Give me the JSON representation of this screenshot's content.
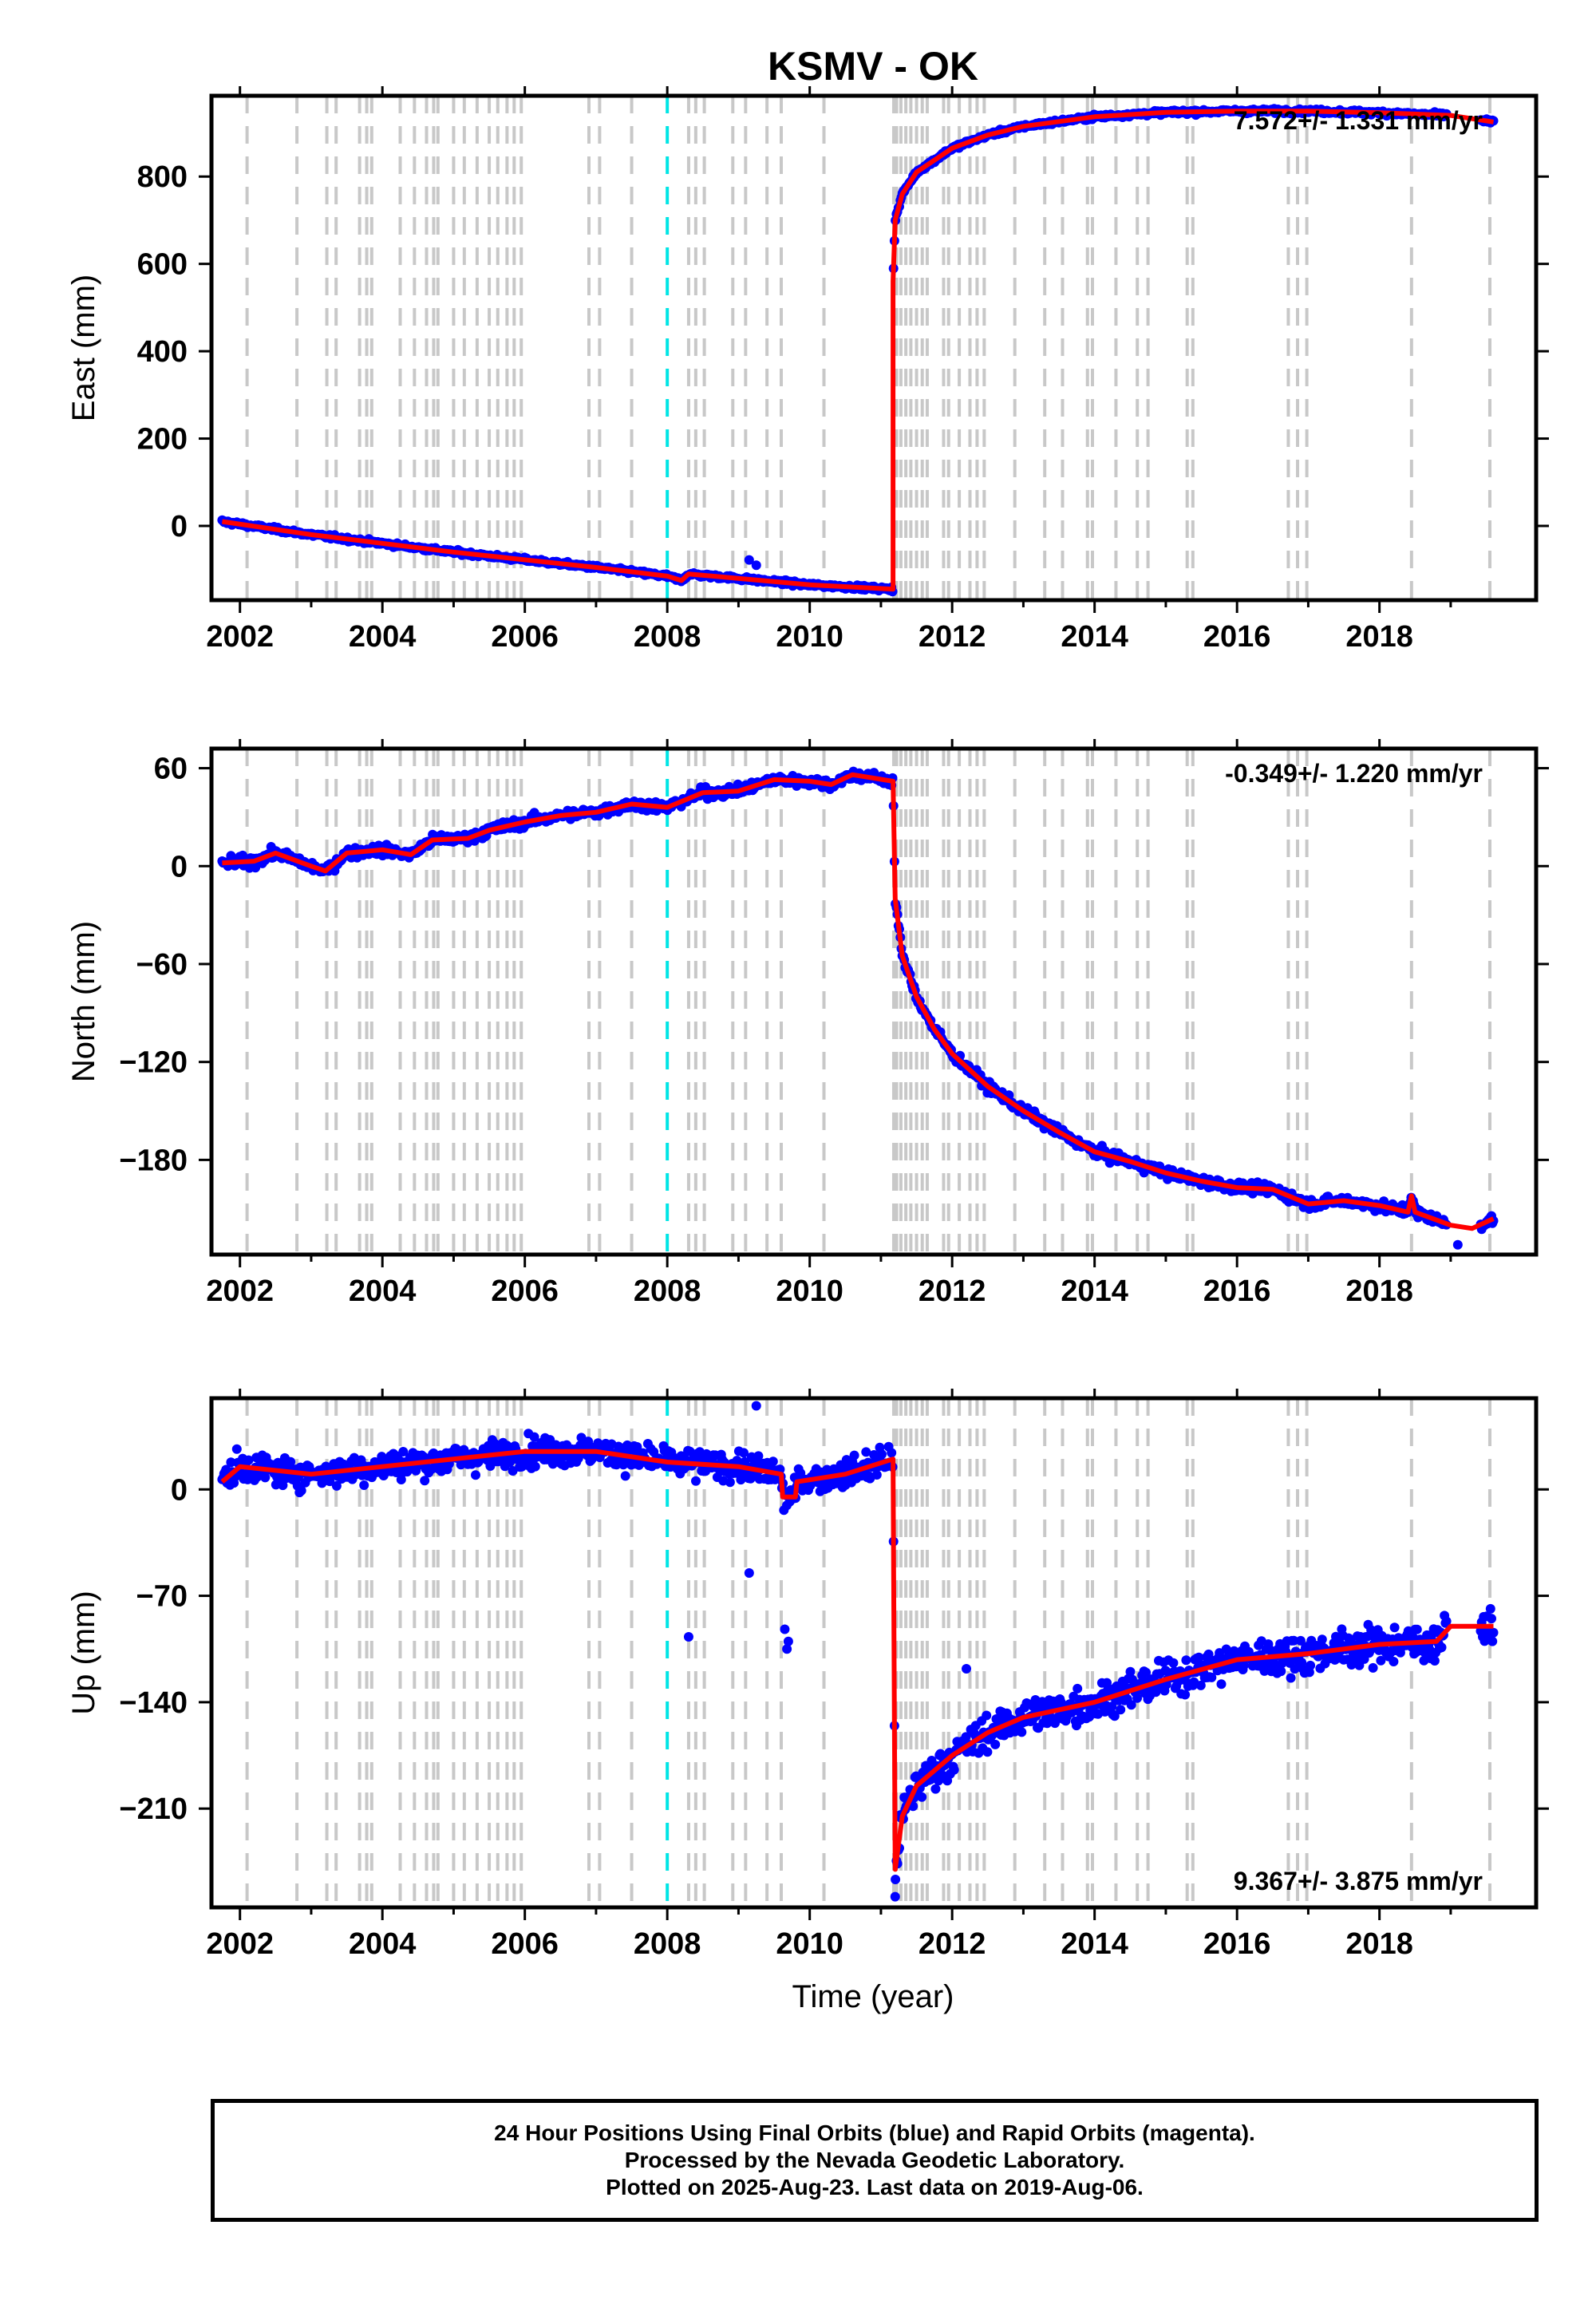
{
  "chart_data": {
    "type": "scatter",
    "title": "KSMV - OK",
    "xlabel": "Time (year)",
    "xlim": [
      2001.6,
      2020.2
    ],
    "x_ticks": [
      2002,
      2004,
      2006,
      2008,
      2010,
      2012,
      2014,
      2016,
      2018
    ],
    "x_tick_labels": [
      "2002",
      "2004",
      "2006",
      "2008",
      "2010",
      "2012",
      "2014",
      "2016",
      "2018"
    ],
    "grid": false,
    "colors": {
      "observations": "#0000ff",
      "model_fit": "#ff0000",
      "equipment_change_lines": "#c8c8c8",
      "special_event_line": "#00e5e5"
    },
    "vertical_event_lines": [
      2002.1,
      2002.8,
      2003.22,
      2003.35,
      2003.68,
      2003.78,
      2003.85,
      2004.25,
      2004.45,
      2004.62,
      2004.72,
      2004.78,
      2005.0,
      2005.15,
      2005.33,
      2005.5,
      2005.62,
      2005.75,
      2005.85,
      2005.95,
      2006.9,
      2007.05,
      2007.5,
      2008.3,
      2008.4,
      2008.52,
      2008.92,
      2009.1,
      2009.4,
      2009.6,
      2010.2,
      2011.18,
      2011.22,
      2011.28,
      2011.35,
      2011.42,
      2011.5,
      2011.58,
      2011.65,
      2011.88,
      2011.95,
      2012.1,
      2012.25,
      2012.35,
      2012.45,
      2012.88,
      2013.3,
      2013.55,
      2013.9,
      2013.97,
      2014.3,
      2014.6,
      2014.75,
      2015.3,
      2015.38,
      2016.72,
      2016.85,
      2016.98,
      2018.45,
      2019.55
    ],
    "special_event_line": 2008.0,
    "panels": [
      {
        "name": "East",
        "ylabel": "East (mm)",
        "ylim": [
          -170,
          985
        ],
        "y_ticks": [
          0,
          200,
          400,
          600,
          800
        ],
        "y_tick_labels": [
          "0",
          "200",
          "400",
          "600",
          "800"
        ],
        "rate_label": "7.572+/- 1.331 mm/yr",
        "rate_label_position": "top-right",
        "model_series": [
          [
            2001.75,
            10
          ],
          [
            2003,
            -20
          ],
          [
            2005,
            -60
          ],
          [
            2007,
            -95
          ],
          [
            2008,
            -115
          ],
          [
            2008.2,
            -125
          ],
          [
            2008.3,
            -110
          ],
          [
            2010,
            -135
          ],
          [
            2011.17,
            -145
          ],
          [
            2011.17,
            560
          ],
          [
            2011.2,
            700
          ],
          [
            2011.3,
            760
          ],
          [
            2011.5,
            810
          ],
          [
            2012,
            865
          ],
          [
            2012.5,
            895
          ],
          [
            2013,
            915
          ],
          [
            2014,
            937
          ],
          [
            2015,
            947
          ],
          [
            2016,
            950
          ],
          [
            2017,
            950
          ],
          [
            2018,
            946
          ],
          [
            2019,
            940
          ],
          [
            2019.6,
            925
          ]
        ],
        "noise_mm": 6,
        "outliers": [
          [
            2009.15,
            -78
          ],
          [
            2009.25,
            -90
          ]
        ]
      },
      {
        "name": "North",
        "ylabel": "North (mm)",
        "ylim": [
          -238,
          72
        ],
        "y_ticks": [
          60,
          0,
          -60,
          -120,
          -180
        ],
        "y_tick_labels": [
          "60",
          "0",
          "−60",
          "−120",
          "−180"
        ],
        "rate_label": "-0.349+/- 1.220 mm/yr",
        "rate_label_position": "top-right",
        "model_series": [
          [
            2001.75,
            2
          ],
          [
            2002.2,
            3
          ],
          [
            2002.5,
            8
          ],
          [
            2003.0,
            0
          ],
          [
            2003.2,
            -3
          ],
          [
            2003.5,
            8
          ],
          [
            2004.0,
            10
          ],
          [
            2004.4,
            7
          ],
          [
            2004.7,
            16
          ],
          [
            2005.2,
            17
          ],
          [
            2005.5,
            22
          ],
          [
            2006.0,
            27
          ],
          [
            2006.5,
            31
          ],
          [
            2007.0,
            33
          ],
          [
            2007.5,
            38
          ],
          [
            2008.0,
            36
          ],
          [
            2008.5,
            45
          ],
          [
            2009.0,
            46
          ],
          [
            2009.5,
            53
          ],
          [
            2010.0,
            52
          ],
          [
            2010.3,
            50
          ],
          [
            2010.6,
            56
          ],
          [
            2011.17,
            52
          ],
          [
            2011.2,
            -20
          ],
          [
            2011.3,
            -55
          ],
          [
            2011.5,
            -80
          ],
          [
            2011.75,
            -100
          ],
          [
            2012.0,
            -115
          ],
          [
            2012.5,
            -135
          ],
          [
            2013.0,
            -150
          ],
          [
            2013.5,
            -163
          ],
          [
            2014.0,
            -175
          ],
          [
            2014.5,
            -181
          ],
          [
            2015.0,
            -188
          ],
          [
            2015.5,
            -193
          ],
          [
            2016.0,
            -197
          ],
          [
            2016.5,
            -198
          ],
          [
            2017.0,
            -207
          ],
          [
            2017.5,
            -205
          ],
          [
            2018.0,
            -208
          ],
          [
            2018.4,
            -212
          ],
          [
            2018.45,
            -202
          ],
          [
            2018.5,
            -212
          ],
          [
            2019.0,
            -220
          ],
          [
            2019.3,
            -222
          ],
          [
            2019.6,
            -216
          ]
        ],
        "noise_mm": 4,
        "outliers": [
          [
            2019.1,
            -232
          ]
        ]
      },
      {
        "name": "Up",
        "ylabel": "Up (mm)",
        "ylim": [
          -275,
          60
        ],
        "y_ticks": [
          0,
          -70,
          -140,
          -210
        ],
        "y_tick_labels": [
          "0",
          "−70",
          "−140",
          "−210"
        ],
        "rate_label": "9.367+/- 3.875 mm/yr",
        "rate_label_position": "bottom-right",
        "model_series": [
          [
            2001.75,
            5
          ],
          [
            2002.0,
            15
          ],
          [
            2003.0,
            10
          ],
          [
            2004.0,
            15
          ],
          [
            2005.0,
            20
          ],
          [
            2006.0,
            25
          ],
          [
            2007.0,
            25
          ],
          [
            2008.0,
            18
          ],
          [
            2009.0,
            15
          ],
          [
            2009.6,
            10
          ],
          [
            2009.62,
            -5
          ],
          [
            2009.8,
            -5
          ],
          [
            2009.82,
            5
          ],
          [
            2010.5,
            10
          ],
          [
            2011.17,
            20
          ],
          [
            2011.2,
            -250
          ],
          [
            2011.3,
            -215
          ],
          [
            2011.5,
            -195
          ],
          [
            2012.0,
            -175
          ],
          [
            2012.5,
            -160
          ],
          [
            2013.0,
            -150
          ],
          [
            2014.0,
            -140
          ],
          [
            2015.0,
            -125
          ],
          [
            2016.0,
            -112
          ],
          [
            2017.0,
            -108
          ],
          [
            2018.0,
            -102
          ],
          [
            2018.8,
            -100
          ],
          [
            2019.0,
            -90
          ],
          [
            2019.6,
            -90
          ]
        ],
        "noise_mm": 12,
        "outliers": [
          [
            2008.3,
            -97
          ],
          [
            2009.15,
            -55
          ],
          [
            2009.65,
            -92
          ],
          [
            2009.7,
            -100
          ],
          [
            2009.68,
            -105
          ],
          [
            2009.25,
            55
          ],
          [
            2011.2,
            -268
          ],
          [
            2012.2,
            -118
          ]
        ]
      }
    ]
  },
  "footer": {
    "line1": "24 Hour Positions Using Final Orbits (blue) and Rapid Orbits (magenta).",
    "line2": "Processed by the Nevada Geodetic Laboratory.",
    "line3": "Plotted on 2025-Aug-23. Last data on 2019-Aug-06."
  }
}
